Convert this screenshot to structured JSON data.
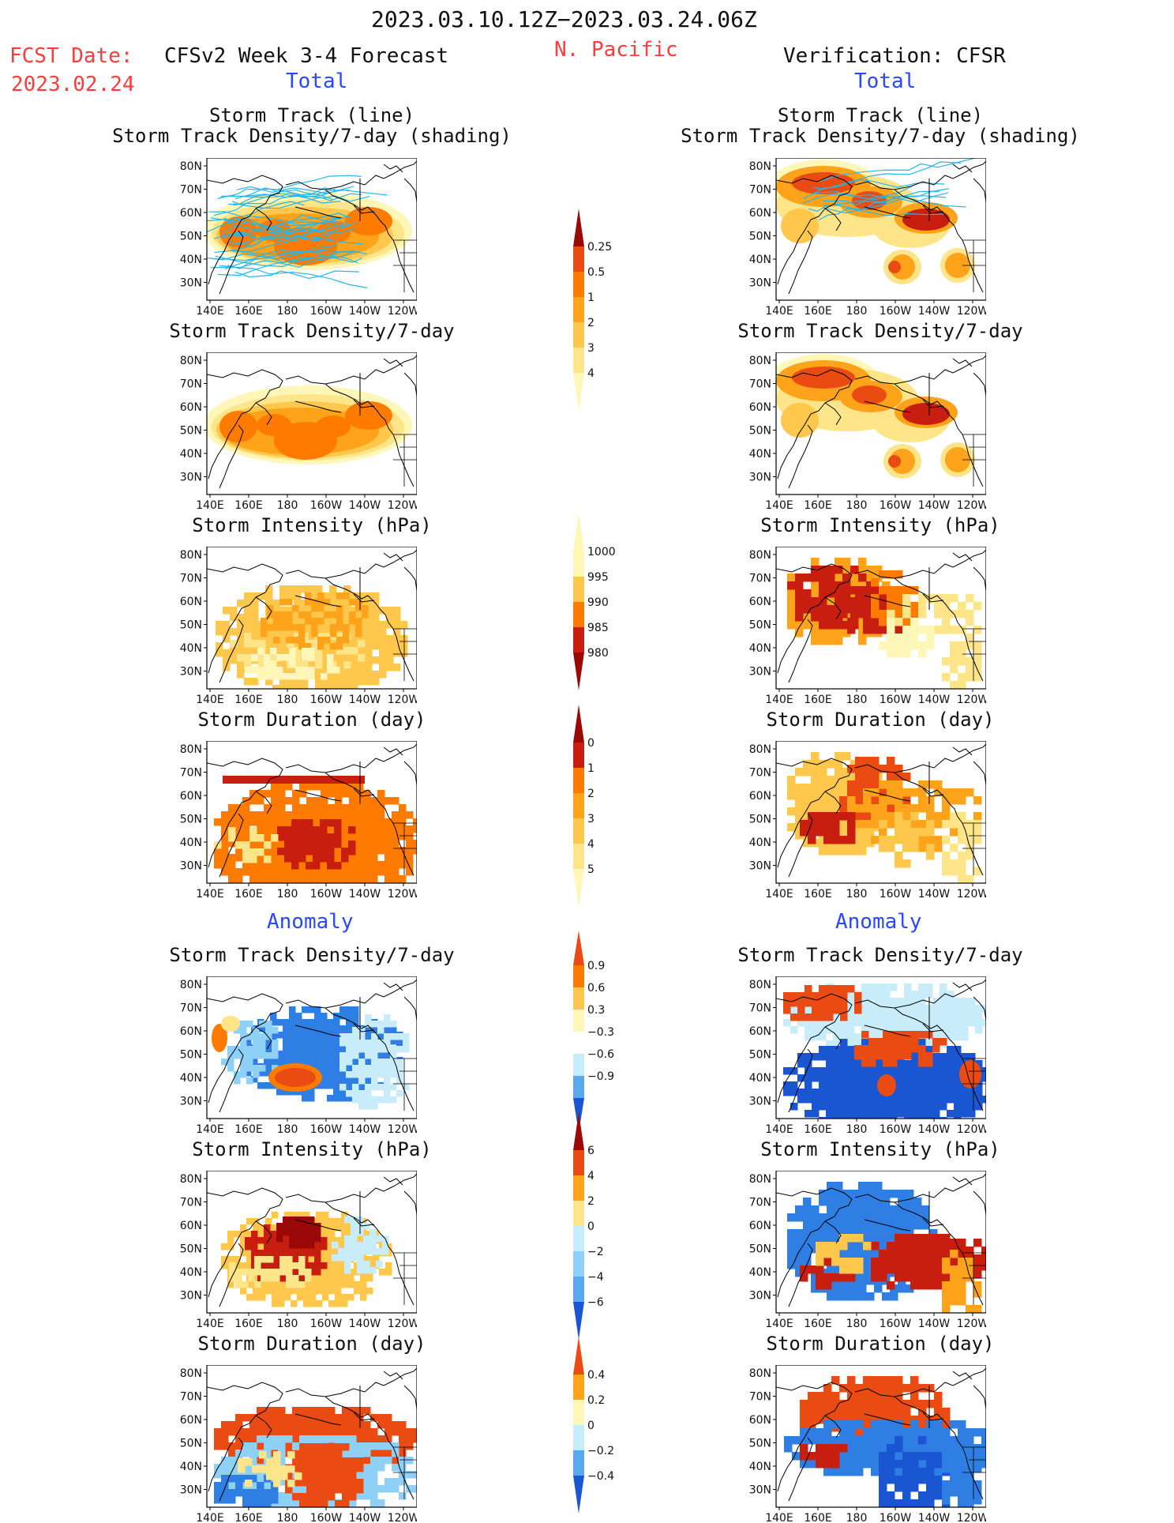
{
  "header": {
    "date_range": "2023.03.10.12Z−2023.03.24.06Z",
    "fcst_label": "FCST Date:",
    "fcst_date": "2023.02.24",
    "model_title": "CFSv2 Week 3-4 Forecast",
    "region": "N. Pacific",
    "verification": "Verification: CFSR",
    "total_left": "Total",
    "total_right": "Total",
    "anomaly_left": "Anomaly",
    "anomaly_right": "Anomaly"
  },
  "axes": {
    "lat_ticks": [
      "80N",
      "70N",
      "60N",
      "50N",
      "40N",
      "30N"
    ],
    "lon_ticks": [
      "140E",
      "160E",
      "180",
      "160W",
      "140W",
      "120W"
    ]
  },
  "panel_titles": {
    "track_line": "Storm Track (line)",
    "track_shading": "Storm Track Density/7-day (shading)",
    "density": "Storm Track Density/7-day",
    "intensity": "Storm Intensity (hPa)",
    "duration": "Storm Duration (day)"
  },
  "colorbars": {
    "density_total": [
      "0.25",
      "0.5",
      "1",
      "2",
      "3",
      "4"
    ],
    "intensity_total": [
      "1000",
      "995",
      "990",
      "985",
      "980"
    ],
    "duration_total": [
      "0",
      "1",
      "2",
      "3",
      "4",
      "5"
    ],
    "density_anom": [
      "0.9",
      "0.6",
      "0.3",
      "−0.3",
      "−0.6",
      "−0.9"
    ],
    "intensity_anom": [
      "6",
      "4",
      "2",
      "0",
      "−2",
      "−4",
      "−6"
    ],
    "duration_anom": [
      "0.4",
      "0.2",
      "0",
      "−0.2",
      "−0.4"
    ]
  },
  "colors": {
    "warm": [
      "#fff7b8",
      "#ffe58a",
      "#ffc84d",
      "#ffa31a",
      "#ff7b00",
      "#ea4b12",
      "#c81e10",
      "#9a0808"
    ],
    "cool": [
      "#ffffff",
      "#c9ecfb",
      "#8fd0f6",
      "#5aa8ee",
      "#2f7ee3",
      "#1a55d2"
    ],
    "track_line": "#28b6e6"
  }
}
